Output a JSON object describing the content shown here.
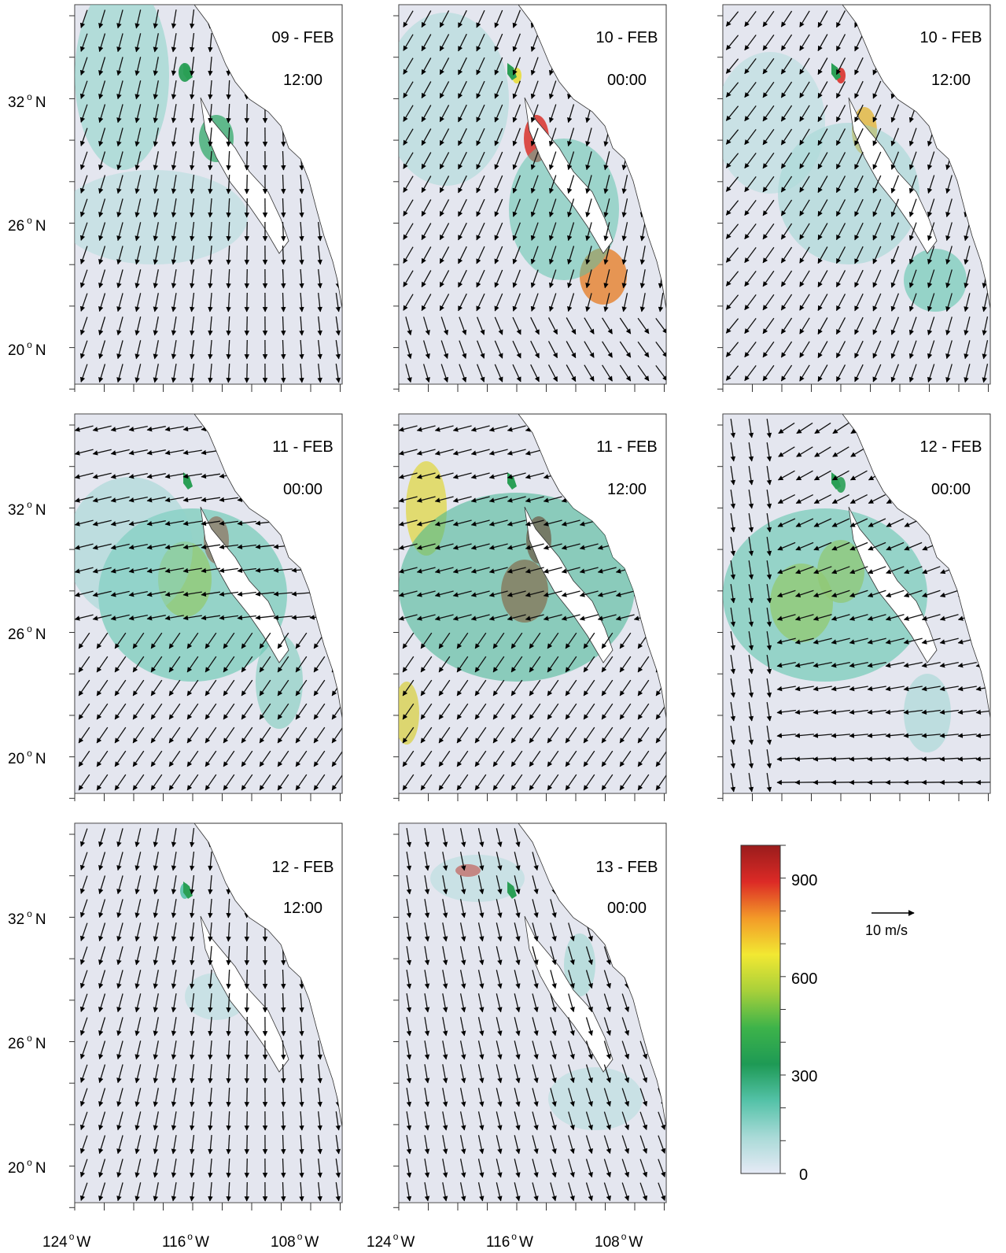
{
  "colorbar": {
    "ticks": [
      "900",
      "600",
      "300",
      "0"
    ],
    "stops": [
      "#e6eaf6",
      "#a9dad7",
      "#54c2a8",
      "#1e9a55",
      "#3db34a",
      "#a8d03a",
      "#f2e832",
      "#f39a28",
      "#dc2a26",
      "#9a1c1c"
    ]
  },
  "reference_vector": {
    "label": "10 m/s"
  },
  "axes": {
    "lat_labels": [
      "32",
      "26",
      "20"
    ],
    "lat_hemisphere": "N",
    "lon_labels": [
      "124",
      "116",
      "108"
    ],
    "lon_hemisphere": "W",
    "degree_mark": "o"
  },
  "panels": [
    {
      "date": "09 - FEB",
      "time": "12:00",
      "field": "weak"
    },
    {
      "date": "10 - FEB",
      "time": "00:00",
      "field": "gulf-strong"
    },
    {
      "date": "10 - FEB",
      "time": "12:00",
      "field": "gulf-moderate"
    },
    {
      "date": "11 - FEB",
      "time": "00:00",
      "field": "broad"
    },
    {
      "date": "11 - FEB",
      "time": "12:00",
      "field": "broad-strong"
    },
    {
      "date": "12 - FEB",
      "time": "00:00",
      "field": "offshore"
    },
    {
      "date": "12 - FEB",
      "time": "12:00",
      "field": "calm"
    },
    {
      "date": "13 - FEB",
      "time": "00:00",
      "field": "calm-north"
    }
  ]
}
